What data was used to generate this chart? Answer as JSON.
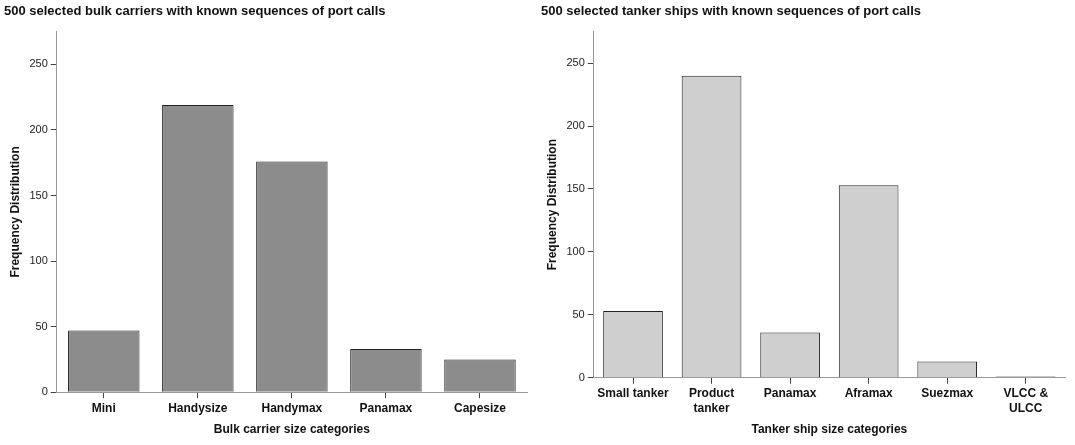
{
  "chart_data": [
    {
      "type": "bar",
      "title": "500 selected bulk carriers with known sequences of port calls",
      "xlabel": "Bulk carrier size categories",
      "ylabel": "Frequency Distribution",
      "categories": [
        "Mini",
        "Handysize",
        "Handymax",
        "Panamax",
        "Capesize"
      ],
      "values": [
        47,
        219,
        176,
        33,
        25
      ],
      "color": "#8c8c8c",
      "ylim": [
        0,
        275
      ],
      "yticks": [
        0,
        50,
        100,
        150,
        200,
        250
      ],
      "grid": false,
      "legend": false
    },
    {
      "type": "bar",
      "title": "500 selected tanker ships with known sequences of port calls",
      "xlabel": "Tanker ship size categories",
      "ylabel": "Frequency Distribution",
      "categories": [
        "Small tanker",
        "Product\ntanker",
        "Panamax",
        "Aframax",
        "Suezmax",
        "VLCC &\nULCC"
      ],
      "values": [
        53,
        240,
        36,
        153,
        13,
        1
      ],
      "color": "#cfcfcf",
      "ylim": [
        0,
        275
      ],
      "yticks": [
        0,
        50,
        100,
        150,
        200,
        250
      ],
      "grid": false,
      "legend": false
    }
  ]
}
